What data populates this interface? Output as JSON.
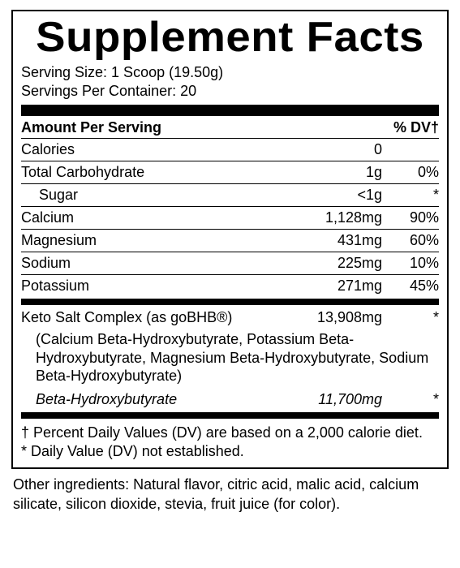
{
  "title": "Supplement  Facts",
  "serving_size_label": "Serving Size: 1 Scoop (19.50g)",
  "servings_per_container_label": "Servings Per Container: 20",
  "header_amount": "Amount Per Serving",
  "header_dv": "% DV",
  "dagger": "†",
  "rows_main": [
    {
      "name": "Calories",
      "amount": "0",
      "dv": ""
    },
    {
      "name": "Total Carbohydrate",
      "amount": "1g",
      "dv": "0%"
    },
    {
      "name": "Sugar",
      "amount": "<1g",
      "dv": "*",
      "indent": true
    },
    {
      "name": "Calcium",
      "amount": "1,128mg",
      "dv": "90%"
    },
    {
      "name": "Magnesium",
      "amount": "431mg",
      "dv": "60%"
    },
    {
      "name": "Sodium",
      "amount": "225mg",
      "dv": "10%"
    },
    {
      "name": "Potassium",
      "amount": "271mg",
      "dv": "45%"
    }
  ],
  "complex": {
    "name": "Keto Salt Complex (as goBHB®)",
    "amount": "13,908mg",
    "dv": "*",
    "desc": "(Calcium Beta-Hydroxybutyrate, Potassium Beta-Hydroxybutyrate, Magnesium Beta-Hydroxybutyrate, Sodium Beta-Hydroxybutyrate)",
    "sub_name": "Beta-Hydroxybutyrate",
    "sub_amount": "11,700mg",
    "sub_dv": "*"
  },
  "footnote1": "† Percent Daily Values (DV) are based on a 2,000 calorie diet.",
  "footnote2": "* Daily Value (DV) not established.",
  "other_ingredients": "Other ingredients: Natural flavor, citric acid, malic acid, calcium silicate, silicon dioxide, stevia, fruit juice (for color)."
}
